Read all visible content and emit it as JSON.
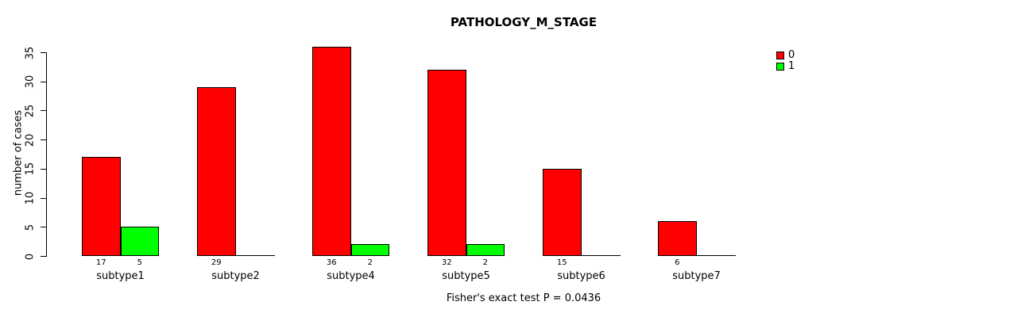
{
  "chart_data": {
    "type": "bar",
    "title": "PATHOLOGY_M_STAGE",
    "ylabel": "number of cases",
    "footer": "Fisher's exact test P = 0.0436",
    "categories": [
      "subtype1",
      "subtype2",
      "subtype4",
      "subtype5",
      "subtype6",
      "subtype7"
    ],
    "series": [
      {
        "name": "0",
        "color": "#ff0000",
        "values": [
          17,
          29,
          36,
          32,
          15,
          6
        ]
      },
      {
        "name": "1",
        "color": "#00ff00",
        "values": [
          5,
          0,
          2,
          2,
          0,
          0
        ]
      }
    ],
    "bar_value_labels_shown": [
      [
        "17",
        "5"
      ],
      [
        "29",
        ""
      ],
      [
        "36",
        "2"
      ],
      [
        "32",
        "2"
      ],
      [
        "15",
        ""
      ],
      [
        "6",
        ""
      ]
    ],
    "ylim": [
      0,
      35
    ],
    "yticks": [
      0,
      5,
      10,
      15,
      20,
      25,
      30,
      35
    ],
    "grid": false,
    "legend_position": "top-right",
    "colors": {
      "bar_outline": "#000000",
      "axis": "#000000",
      "background": "#ffffff"
    }
  }
}
